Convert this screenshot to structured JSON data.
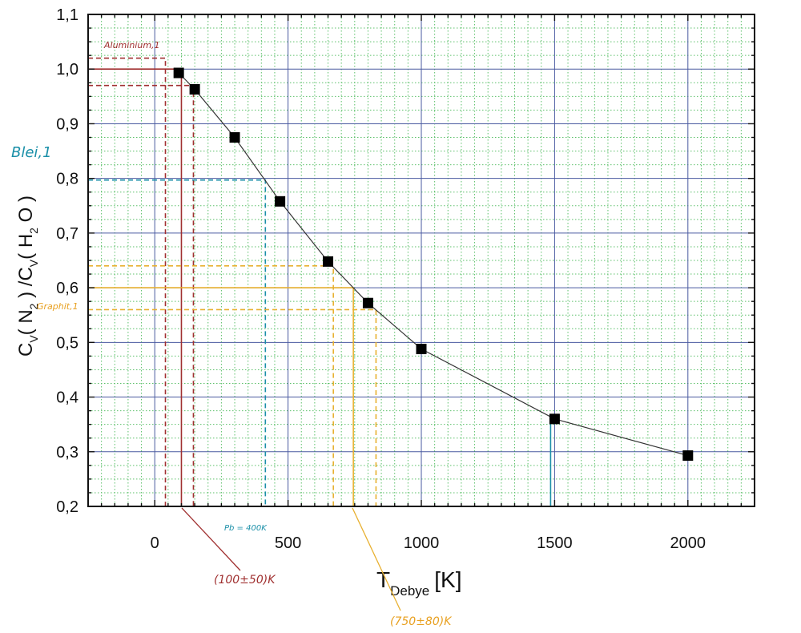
{
  "chart_data": {
    "type": "scatter",
    "title": "",
    "xlabel": {
      "main": "T",
      "sub": "Debye",
      "unit": "[K]"
    },
    "ylabel": {
      "p1": "C",
      "s1": "V",
      "p2": "( N",
      "s2": "2",
      "p3": " ) /C",
      "s3": "V",
      "p4": "( H",
      "s4": "2",
      "p5": " O )"
    },
    "xlim": [
      -250,
      2250
    ],
    "ylim": [
      0.2,
      1.1
    ],
    "x_ticks": [
      0,
      500,
      1000,
      1500,
      2000
    ],
    "x_tick_labels": [
      "0",
      "500",
      "1000",
      "1500",
      "2000"
    ],
    "y_ticks": [
      0.2,
      0.3,
      0.4,
      0.5,
      0.6,
      0.7,
      0.8,
      0.9,
      1.0,
      1.1
    ],
    "y_tick_labels": [
      "0,2",
      "0,3",
      "0,4",
      "0,5",
      "0,6",
      "0,7",
      "0,8",
      "0,9",
      "1,0",
      "1,1"
    ],
    "grid": true,
    "connected": true,
    "series": [
      {
        "x": [
          90,
          150,
          300,
          470,
          650,
          800,
          1000,
          1500,
          2000
        ],
        "y": [
          0.993,
          0.963,
          0.875,
          0.758,
          0.648,
          0.572,
          0.488,
          0.36,
          0.293
        ]
      }
    ],
    "annotations": [
      {
        "label": "Aluminium,1",
        "color": "#a03030",
        "solid": {
          "y": 1.0,
          "x": 100
        },
        "dashed": [
          {
            "y": 1.02,
            "x": 40
          },
          {
            "y": 0.97,
            "x": 145
          }
        ],
        "note": "(100±50)K"
      },
      {
        "label": "Blei,1",
        "color": "#1a8fa8",
        "dashed": [
          {
            "y": 0.797,
            "x": 415
          }
        ],
        "note": "Pb = 400K"
      },
      {
        "label": "Graphit,1",
        "color": "#e8b030",
        "solid": {
          "y": 0.6,
          "x": 745
        },
        "dashed": [
          {
            "y": 0.64,
            "x": 670
          },
          {
            "y": 0.56,
            "x": 830
          }
        ],
        "note": "(750±80)K"
      },
      {
        "label": "",
        "color": "#1a8fa8",
        "solid_vertical": {
          "x": 1485,
          "y": 0.36
        }
      }
    ]
  }
}
